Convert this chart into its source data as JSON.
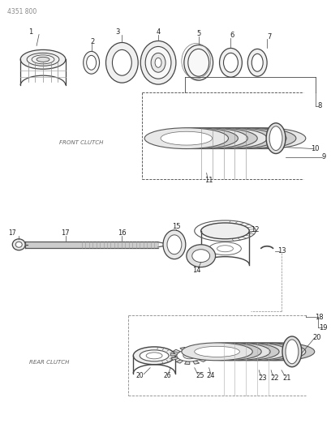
{
  "title_code": "4351 800",
  "bg_color": "#ffffff",
  "line_color": "#444444",
  "text_color": "#222222",
  "fig_width": 4.08,
  "fig_height": 5.33,
  "dpi": 100,
  "front_clutch_label": "FRONT CLUTCH",
  "rear_clutch_label": "REAR CLUTCH"
}
